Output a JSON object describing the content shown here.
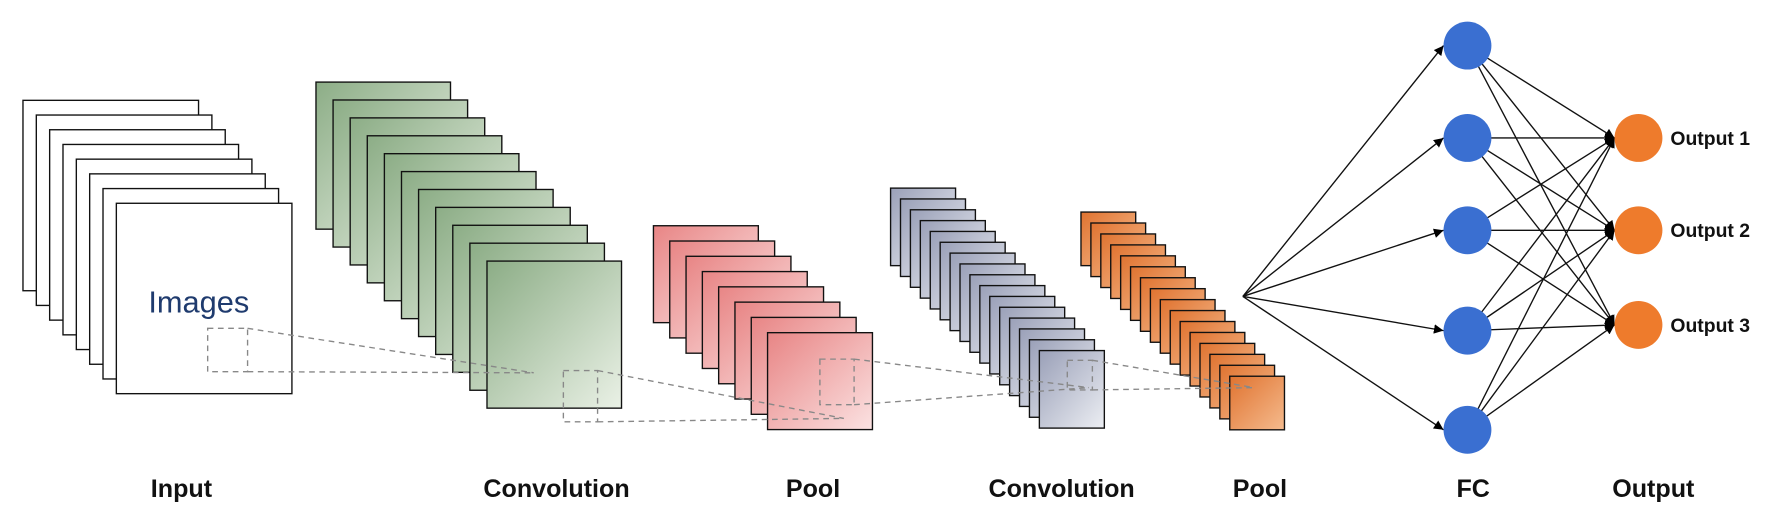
{
  "image_text": "Images",
  "stage_labels": [
    "Input",
    "Convolution",
    "Pool",
    "Convolution",
    "Pool",
    "FC",
    "Output"
  ],
  "output_labels": [
    "Output 1",
    "Output 2",
    "Output 3"
  ]
}
